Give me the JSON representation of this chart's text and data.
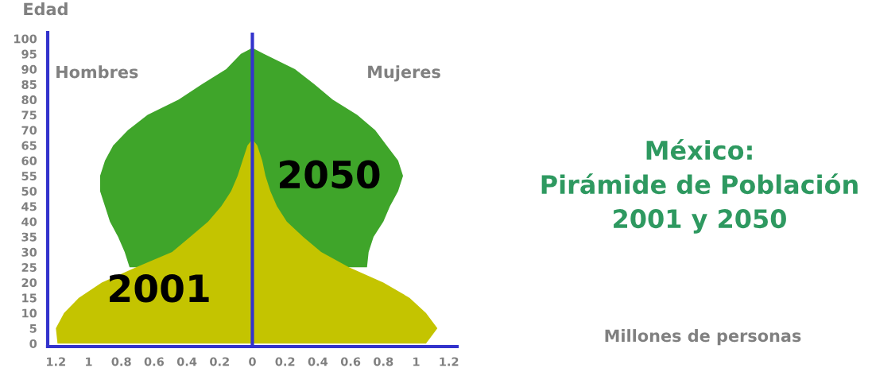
{
  "chart_data": {
    "type": "area",
    "orientation": "horizontal",
    "title": "México:\nPirámide de Población\n2001 y 2050",
    "ylabel": "Edad",
    "annotations": [
      "Hombres",
      "Mujeres",
      "Millones de personas"
    ],
    "series": [
      {
        "x": [
          25,
          30,
          35,
          40,
          45,
          50,
          55,
          60,
          65,
          70,
          75,
          80,
          85,
          90,
          95,
          97
        ],
        "color": "#3fa52a",
        "values": [
          -0.75,
          -0.78,
          -0.82,
          -0.87,
          -0.9,
          -0.93,
          -0.93,
          -0.9,
          -0.85,
          -0.76,
          -0.64,
          -0.45,
          -0.31,
          -0.16,
          -0.07,
          0
        ]
      },
      {
        "name": "2050",
        "x": [
          25,
          30,
          35,
          40,
          45,
          50,
          55,
          60,
          65,
          70,
          75,
          80,
          85,
          90,
          95,
          97
        ],
        "color": "#3fa52a",
        "values": [
          0.7,
          0.71,
          0.74,
          0.8,
          0.84,
          0.89,
          0.92,
          0.89,
          0.82,
          0.75,
          0.64,
          0.49,
          0.38,
          0.26,
          0.07,
          0
        ]
      },
      {
        "name": "2001",
        "x": [
          0,
          5,
          10,
          15,
          20,
          25,
          30,
          35,
          40,
          45,
          50,
          55,
          60,
          65,
          67
        ],
        "color": "#c4c400",
        "values": [
          -1.19,
          -1.2,
          -1.15,
          -1.06,
          -0.92,
          -0.71,
          -0.49,
          -0.38,
          -0.27,
          -0.19,
          -0.13,
          -0.09,
          -0.06,
          -0.03,
          0
        ]
      },
      {
        "x": [
          0,
          5,
          10,
          15,
          20,
          25,
          30,
          35,
          40,
          45,
          50,
          55,
          60,
          65,
          67
        ],
        "color": "#c4c400",
        "values": [
          1.06,
          1.13,
          1.06,
          0.96,
          0.8,
          0.59,
          0.42,
          0.31,
          0.21,
          0.15,
          0.11,
          0.08,
          0.06,
          0.03,
          0
        ]
      }
    ],
    "xlim": [
      -1.25,
      1.25
    ],
    "ylim": [
      -1,
      102
    ],
    "xticks": [
      {
        "value": -1.2,
        "label": "1.2"
      },
      {
        "value": -1,
        "label": "1"
      },
      {
        "value": -0.8,
        "label": "0.8"
      },
      {
        "value": -0.6,
        "label": "0.6"
      },
      {
        "value": -0.4,
        "label": "0.4"
      },
      {
        "value": -0.2,
        "label": "0.2"
      },
      0,
      0.2,
      0.4,
      0.6,
      0.8,
      1,
      1.2
    ],
    "yticks": [
      0,
      5,
      10,
      15,
      20,
      25,
      30,
      35,
      40,
      45,
      50,
      55,
      60,
      65,
      70,
      75,
      80,
      85,
      90,
      95,
      100
    ],
    "ref_lines": [
      {
        "axis": "x",
        "value": 0,
        "color": "#3333cc"
      }
    ]
  }
}
